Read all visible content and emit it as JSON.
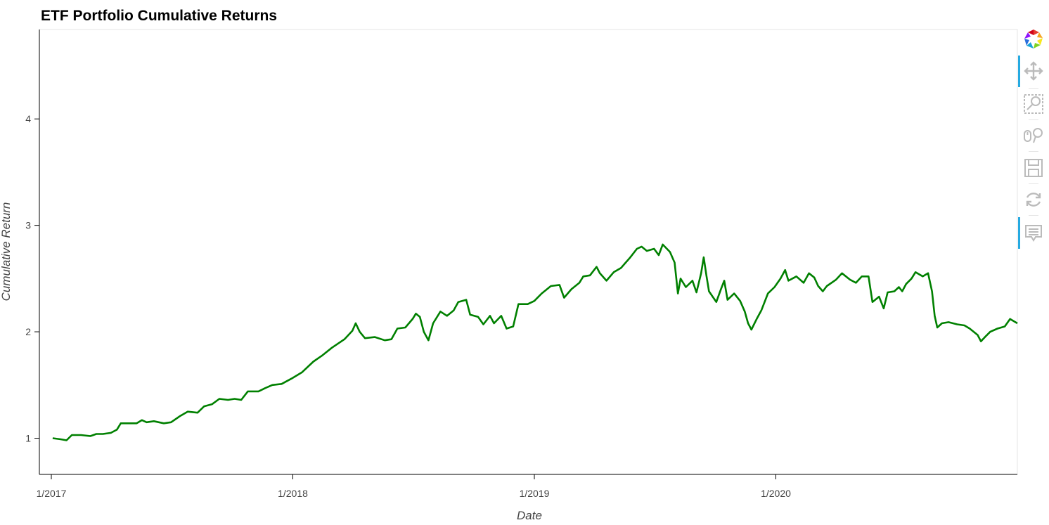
{
  "chart_data": {
    "type": "line",
    "title": "ETF Portfolio Cumulative Returns",
    "xlabel": "Date",
    "ylabel": "Cumulative Return",
    "x_ticks": [
      "1/2017",
      "1/2018",
      "1/2019",
      "1/2020"
    ],
    "y_ticks": [
      "1",
      "2",
      "3",
      "4"
    ],
    "xlim": [
      "2017-01-01",
      "2020-12-31"
    ],
    "ylim": [
      0.66,
      4.84
    ],
    "grid": false,
    "series": [
      {
        "color": "#008000",
        "points": [
          [
            "2017-01-03",
            1.0
          ],
          [
            "2017-01-15",
            0.99
          ],
          [
            "2017-01-24",
            0.98
          ],
          [
            "2017-02-01",
            1.03
          ],
          [
            "2017-02-15",
            1.03
          ],
          [
            "2017-03-01",
            1.02
          ],
          [
            "2017-03-10",
            1.04
          ],
          [
            "2017-03-20",
            1.04
          ],
          [
            "2017-04-01",
            1.05
          ],
          [
            "2017-04-10",
            1.08
          ],
          [
            "2017-04-16",
            1.14
          ],
          [
            "2017-04-25",
            1.14
          ],
          [
            "2017-05-10",
            1.14
          ],
          [
            "2017-05-18",
            1.17
          ],
          [
            "2017-05-25",
            1.15
          ],
          [
            "2017-06-05",
            1.16
          ],
          [
            "2017-06-20",
            1.14
          ],
          [
            "2017-07-01",
            1.15
          ],
          [
            "2017-07-15",
            1.21
          ],
          [
            "2017-07-26",
            1.25
          ],
          [
            "2017-08-10",
            1.24
          ],
          [
            "2017-08-20",
            1.3
          ],
          [
            "2017-09-01",
            1.32
          ],
          [
            "2017-09-12",
            1.37
          ],
          [
            "2017-09-25",
            1.36
          ],
          [
            "2017-10-05",
            1.37
          ],
          [
            "2017-10-15",
            1.36
          ],
          [
            "2017-10-25",
            1.44
          ],
          [
            "2017-11-10",
            1.44
          ],
          [
            "2017-11-20",
            1.47
          ],
          [
            "2017-12-01",
            1.5
          ],
          [
            "2017-12-15",
            1.51
          ],
          [
            "2017-12-30",
            1.56
          ],
          [
            "2018-01-15",
            1.62
          ],
          [
            "2018-02-01",
            1.72
          ],
          [
            "2018-02-15",
            1.78
          ],
          [
            "2018-03-01",
            1.85
          ],
          [
            "2018-03-20",
            1.93
          ],
          [
            "2018-04-01",
            2.01
          ],
          [
            "2018-04-06",
            2.08
          ],
          [
            "2018-04-12",
            2.0
          ],
          [
            "2018-04-20",
            1.94
          ],
          [
            "2018-05-05",
            1.95
          ],
          [
            "2018-05-20",
            1.92
          ],
          [
            "2018-05-30",
            1.93
          ],
          [
            "2018-06-08",
            2.03
          ],
          [
            "2018-06-20",
            2.04
          ],
          [
            "2018-07-01",
            2.12
          ],
          [
            "2018-07-06",
            2.17
          ],
          [
            "2018-07-12",
            2.14
          ],
          [
            "2018-07-18",
            2.0
          ],
          [
            "2018-07-25",
            1.92
          ],
          [
            "2018-08-01",
            2.08
          ],
          [
            "2018-08-12",
            2.19
          ],
          [
            "2018-08-22",
            2.15
          ],
          [
            "2018-09-01",
            2.2
          ],
          [
            "2018-09-08",
            2.28
          ],
          [
            "2018-09-20",
            2.3
          ],
          [
            "2018-09-26",
            2.16
          ],
          [
            "2018-10-08",
            2.14
          ],
          [
            "2018-10-16",
            2.07
          ],
          [
            "2018-10-26",
            2.15
          ],
          [
            "2018-11-01",
            2.08
          ],
          [
            "2018-11-12",
            2.15
          ],
          [
            "2018-11-20",
            2.03
          ],
          [
            "2018-11-30",
            2.05
          ],
          [
            "2018-12-08",
            2.26
          ],
          [
            "2018-12-22",
            2.26
          ],
          [
            "2019-01-01",
            2.29
          ],
          [
            "2019-01-12",
            2.36
          ],
          [
            "2019-01-26",
            2.43
          ],
          [
            "2019-02-08",
            2.44
          ],
          [
            "2019-02-15",
            2.32
          ],
          [
            "2019-02-26",
            2.4
          ],
          [
            "2019-03-10",
            2.46
          ],
          [
            "2019-03-16",
            2.52
          ],
          [
            "2019-03-26",
            2.53
          ],
          [
            "2019-04-05",
            2.61
          ],
          [
            "2019-04-10",
            2.55
          ],
          [
            "2019-04-20",
            2.48
          ],
          [
            "2019-05-01",
            2.56
          ],
          [
            "2019-05-12",
            2.6
          ],
          [
            "2019-05-26",
            2.7
          ],
          [
            "2019-06-05",
            2.78
          ],
          [
            "2019-06-12",
            2.8
          ],
          [
            "2019-06-20",
            2.76
          ],
          [
            "2019-07-01",
            2.78
          ],
          [
            "2019-07-08",
            2.72
          ],
          [
            "2019-07-14",
            2.82
          ],
          [
            "2019-07-25",
            2.75
          ],
          [
            "2019-08-01",
            2.65
          ],
          [
            "2019-08-06",
            2.36
          ],
          [
            "2019-08-10",
            2.5
          ],
          [
            "2019-08-18",
            2.42
          ],
          [
            "2019-08-28",
            2.48
          ],
          [
            "2019-09-03",
            2.37
          ],
          [
            "2019-09-10",
            2.55
          ],
          [
            "2019-09-14",
            2.7
          ],
          [
            "2019-09-18",
            2.53
          ],
          [
            "2019-09-22",
            2.38
          ],
          [
            "2019-10-03",
            2.28
          ],
          [
            "2019-10-10",
            2.4
          ],
          [
            "2019-10-15",
            2.48
          ],
          [
            "2019-10-20",
            2.3
          ],
          [
            "2019-10-30",
            2.36
          ],
          [
            "2019-11-08",
            2.29
          ],
          [
            "2019-11-15",
            2.19
          ],
          [
            "2019-11-20",
            2.08
          ],
          [
            "2019-11-25",
            2.02
          ],
          [
            "2019-12-03",
            2.12
          ],
          [
            "2019-12-10",
            2.2
          ],
          [
            "2019-12-20",
            2.36
          ],
          [
            "2019-12-30",
            2.42
          ],
          [
            "2020-01-08",
            2.5
          ],
          [
            "2020-01-15",
            2.58
          ],
          [
            "2020-01-20",
            2.48
          ],
          [
            "2020-02-01",
            2.52
          ],
          [
            "2020-02-12",
            2.46
          ],
          [
            "2020-02-20",
            2.55
          ],
          [
            "2020-02-28",
            2.51
          ],
          [
            "2020-03-05",
            2.43
          ],
          [
            "2020-03-12",
            2.38
          ],
          [
            "2020-03-18",
            2.43
          ],
          [
            "2020-04-01",
            2.49
          ],
          [
            "2020-04-10",
            2.55
          ],
          [
            "2020-04-22",
            2.49
          ],
          [
            "2020-05-01",
            2.46
          ],
          [
            "2020-05-10",
            2.52
          ],
          [
            "2020-05-20",
            2.52
          ],
          [
            "2020-05-26",
            2.28
          ],
          [
            "2020-06-05",
            2.33
          ],
          [
            "2020-06-12",
            2.22
          ],
          [
            "2020-06-18",
            2.37
          ],
          [
            "2020-06-28",
            2.38
          ],
          [
            "2020-07-05",
            2.42
          ],
          [
            "2020-07-10",
            2.38
          ],
          [
            "2020-07-16",
            2.45
          ],
          [
            "2020-07-24",
            2.5
          ],
          [
            "2020-07-30",
            2.56
          ],
          [
            "2020-08-10",
            2.52
          ],
          [
            "2020-08-18",
            2.55
          ],
          [
            "2020-08-24",
            2.38
          ],
          [
            "2020-08-28",
            2.15
          ],
          [
            "2020-09-01",
            2.04
          ],
          [
            "2020-09-08",
            2.08
          ],
          [
            "2020-09-18",
            2.09
          ],
          [
            "2020-10-01",
            2.07
          ],
          [
            "2020-10-12",
            2.06
          ],
          [
            "2020-10-20",
            2.03
          ],
          [
            "2020-11-01",
            1.97
          ],
          [
            "2020-11-06",
            1.91
          ],
          [
            "2020-11-12",
            1.95
          ],
          [
            "2020-11-20",
            2.0
          ],
          [
            "2020-12-01",
            2.03
          ],
          [
            "2020-12-12",
            2.05
          ],
          [
            "2020-12-20",
            2.12
          ],
          [
            "2020-12-31",
            2.08
          ]
        ]
      }
    ]
  },
  "toolbar": {
    "tools": [
      {
        "name": "bokeh-logo-icon",
        "interactable": false
      },
      {
        "name": "pan-tool-icon",
        "interactable": true,
        "active": true
      },
      {
        "name": "box-zoom-tool-icon",
        "interactable": true,
        "active": false
      },
      {
        "name": "wheel-zoom-tool-icon",
        "interactable": true,
        "active": false
      },
      {
        "name": "save-tool-icon",
        "interactable": true,
        "active": false
      },
      {
        "name": "reset-tool-icon",
        "interactable": true,
        "active": false
      },
      {
        "name": "hover-tool-icon",
        "interactable": true,
        "active": true
      }
    ],
    "accent_color": "#26aae1",
    "icon_color": "#bbbbbb"
  }
}
